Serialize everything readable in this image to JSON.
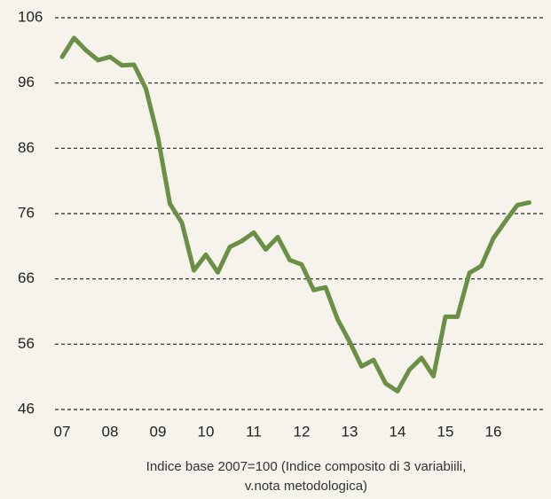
{
  "chart_data": {
    "type": "line",
    "categories": [
      "07",
      null,
      null,
      null,
      "08",
      null,
      null,
      null,
      "09",
      null,
      null,
      null,
      "10",
      null,
      null,
      null,
      "11",
      null,
      null,
      null,
      "12",
      null,
      null,
      null,
      "13",
      null,
      null,
      null,
      "14",
      null,
      null,
      null,
      "15",
      null,
      null,
      null,
      "16",
      null,
      null,
      null
    ],
    "series": [
      {
        "name": "Indice",
        "color": "#6a8f45",
        "values": [
          100.0,
          102.9,
          101.0,
          99.5,
          100.0,
          98.7,
          98.8,
          95.1,
          87.7,
          77.5,
          74.6,
          67.3,
          69.7,
          67.0,
          70.9,
          71.8,
          73.1,
          70.5,
          72.4,
          68.9,
          68.2,
          64.3,
          64.7,
          59.8,
          56.4,
          52.6,
          53.6,
          50.0,
          48.8,
          52.1,
          53.9,
          51.1,
          60.2,
          60.2,
          66.9,
          68.0,
          72.2,
          74.8,
          77.3,
          77.7
        ]
      }
    ],
    "ylim": [
      46,
      106
    ],
    "yticks": [
      46,
      56,
      66,
      76,
      86,
      96,
      106
    ],
    "grid": true,
    "notes": [
      "Indice base 2007=100 (Indice composito di 3 variabiili,",
      "v.nota metodologica)"
    ]
  }
}
